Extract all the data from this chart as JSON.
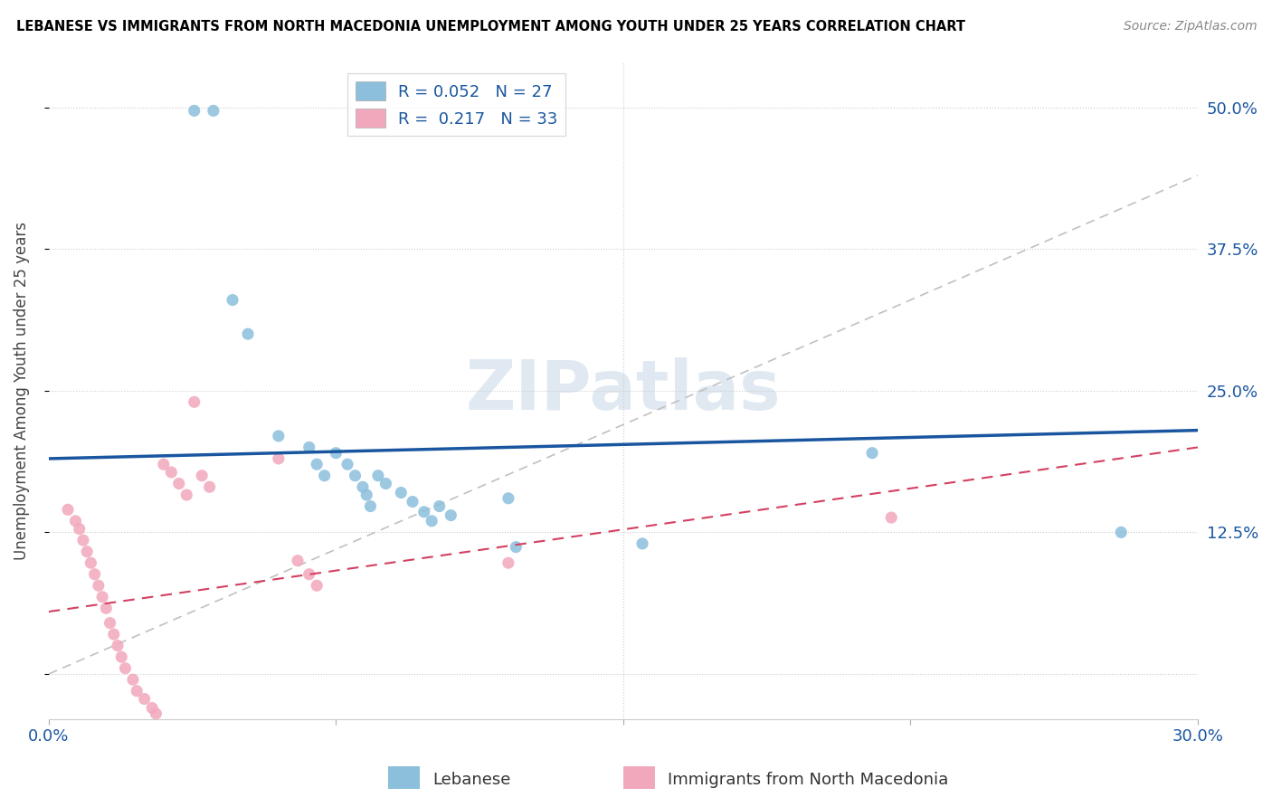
{
  "title": "LEBANESE VS IMMIGRANTS FROM NORTH MACEDONIA UNEMPLOYMENT AMONG YOUTH UNDER 25 YEARS CORRELATION CHART",
  "source": "Source: ZipAtlas.com",
  "ylabel": "Unemployment Among Youth under 25 years",
  "x_min": 0.0,
  "x_max": 0.3,
  "y_min": -0.04,
  "y_max": 0.54,
  "yticks": [
    0.0,
    0.125,
    0.25,
    0.375,
    0.5
  ],
  "ytick_labels_right": [
    "",
    "12.5%",
    "25.0%",
    "37.5%",
    "50.0%"
  ],
  "xticks": [
    0.0,
    0.075,
    0.15,
    0.225,
    0.3
  ],
  "xtick_labels": [
    "0.0%",
    "",
    "",
    "",
    "30.0%"
  ],
  "legend_label_blue": "Lebanese",
  "legend_label_pink": "Immigrants from North Macedonia",
  "blue_color": "#8BBFDC",
  "pink_color": "#F2A8BC",
  "blue_line_color": "#1A56A0",
  "pink_line_color": "#D44060",
  "gray_dash_color": "#C0C0C0",
  "watermark_color": "#C8D8E8",
  "blue_dots": [
    [
      0.038,
      0.497
    ],
    [
      0.043,
      0.497
    ],
    [
      0.048,
      0.33
    ],
    [
      0.052,
      0.3
    ],
    [
      0.06,
      0.21
    ],
    [
      0.068,
      0.2
    ],
    [
      0.07,
      0.185
    ],
    [
      0.072,
      0.175
    ],
    [
      0.075,
      0.195
    ],
    [
      0.078,
      0.185
    ],
    [
      0.08,
      0.175
    ],
    [
      0.082,
      0.165
    ],
    [
      0.083,
      0.158
    ],
    [
      0.084,
      0.148
    ],
    [
      0.086,
      0.175
    ],
    [
      0.088,
      0.168
    ],
    [
      0.092,
      0.16
    ],
    [
      0.095,
      0.152
    ],
    [
      0.098,
      0.143
    ],
    [
      0.1,
      0.135
    ],
    [
      0.102,
      0.148
    ],
    [
      0.105,
      0.14
    ],
    [
      0.12,
      0.155
    ],
    [
      0.122,
      0.112
    ],
    [
      0.155,
      0.115
    ],
    [
      0.215,
      0.195
    ],
    [
      0.28,
      0.125
    ]
  ],
  "pink_dots": [
    [
      0.005,
      0.145
    ],
    [
      0.007,
      0.135
    ],
    [
      0.008,
      0.128
    ],
    [
      0.009,
      0.118
    ],
    [
      0.01,
      0.108
    ],
    [
      0.011,
      0.098
    ],
    [
      0.012,
      0.088
    ],
    [
      0.013,
      0.078
    ],
    [
      0.014,
      0.068
    ],
    [
      0.015,
      0.058
    ],
    [
      0.016,
      0.045
    ],
    [
      0.017,
      0.035
    ],
    [
      0.018,
      0.025
    ],
    [
      0.019,
      0.015
    ],
    [
      0.02,
      0.005
    ],
    [
      0.022,
      -0.005
    ],
    [
      0.023,
      -0.015
    ],
    [
      0.025,
      -0.022
    ],
    [
      0.027,
      -0.03
    ],
    [
      0.028,
      -0.035
    ],
    [
      0.03,
      0.185
    ],
    [
      0.032,
      0.178
    ],
    [
      0.034,
      0.168
    ],
    [
      0.036,
      0.158
    ],
    [
      0.038,
      0.24
    ],
    [
      0.04,
      0.175
    ],
    [
      0.042,
      0.165
    ],
    [
      0.06,
      0.19
    ],
    [
      0.065,
      0.1
    ],
    [
      0.068,
      0.088
    ],
    [
      0.07,
      0.078
    ],
    [
      0.12,
      0.098
    ],
    [
      0.22,
      0.138
    ]
  ],
  "blue_line_x": [
    0.0,
    0.3
  ],
  "blue_line_y": [
    0.19,
    0.215
  ],
  "pink_line_x": [
    0.0,
    0.3
  ],
  "pink_line_y": [
    0.055,
    0.2
  ],
  "gray_line_x": [
    0.0,
    0.3
  ],
  "gray_line_y": [
    0.0,
    0.44
  ]
}
